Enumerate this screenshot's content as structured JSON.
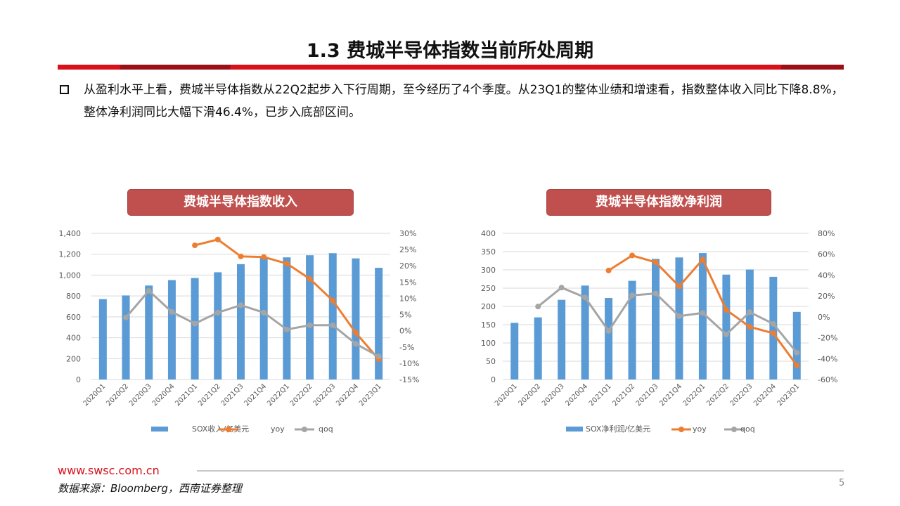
{
  "header": {
    "title": "1.3 费城半导体指数当前所处周期"
  },
  "body": {
    "paragraph": "从盈利水平上看，费城半导体指数从22Q2起步入下行周期，至今经历了4个季度。从23Q1的整体业绩和增速看，指数整体收入同比下降8.8%，整体净利润同比大幅下滑46.4%，已步入底部区间。"
  },
  "footer": {
    "website": "www.swsc.com.cn",
    "source": "数据来源：Bloomberg，西南证券整理",
    "page": "5"
  },
  "colors": {
    "bar": "#5b9bd5",
    "yoy": "#ed7d31",
    "qoq": "#a5a5a5",
    "pill": "#c0504d",
    "accent": "#d8111b"
  },
  "chart_data": [
    {
      "type": "bar+line",
      "title": "费城半导体指数收入",
      "categories": [
        "2020Q1",
        "2020Q2",
        "2020Q3",
        "2020Q4",
        "2021Q1",
        "2021Q2",
        "2021Q3",
        "2021Q4",
        "2022Q1",
        "2022Q2",
        "2022Q3",
        "2022Q4",
        "2023Q1"
      ],
      "y_left": {
        "range": [
          0,
          1400
        ],
        "ticks": [
          "0",
          "200",
          "400",
          "600",
          "800",
          "1,000",
          "1,200",
          "1,400"
        ],
        "tick_values": [
          0,
          200,
          400,
          600,
          800,
          1000,
          1200,
          1400
        ]
      },
      "y_right": {
        "range": [
          -15,
          30
        ],
        "ticks": [
          "-15%",
          "-10%",
          "-5%",
          "0%",
          "5%",
          "10%",
          "15%",
          "20%",
          "25%",
          "30%"
        ],
        "tick_values": [
          -15,
          -10,
          -5,
          0,
          5,
          10,
          15,
          20,
          25,
          30
        ]
      },
      "grid": true,
      "legend": "bottom",
      "series": [
        {
          "name": "SOX收入/亿美元",
          "kind": "bar",
          "axis": "left",
          "values": [
            770,
            805,
            900,
            952,
            972,
            1027,
            1105,
            1175,
            1170,
            1190,
            1210,
            1160,
            1070
          ]
        },
        {
          "name": "yoy",
          "kind": "line",
          "axis": "right",
          "values": [
            null,
            null,
            null,
            null,
            26.3,
            28.1,
            22.9,
            22.7,
            20.7,
            16.0,
            9.3,
            -0.6,
            -8.8
          ]
        },
        {
          "name": "qoq",
          "kind": "line",
          "axis": "right",
          "values": [
            null,
            4.1,
            12.3,
            5.8,
            2.2,
            5.6,
            7.9,
            5.6,
            0.4,
            1.7,
            1.7,
            -4.0,
            -7.9
          ]
        }
      ]
    },
    {
      "type": "bar+line",
      "title": "费城半导体指数净利润",
      "categories": [
        "2020Q1",
        "2020Q2",
        "2020Q3",
        "2020Q4",
        "2021Q1",
        "2021Q2",
        "2021Q3",
        "2021Q4",
        "2022Q1",
        "2022Q2",
        "2022Q3",
        "2022Q4",
        "2023Q1"
      ],
      "y_left": {
        "range": [
          0,
          400
        ],
        "ticks": [
          "0",
          "50",
          "100",
          "150",
          "200",
          "250",
          "300",
          "350",
          "400"
        ],
        "tick_values": [
          0,
          50,
          100,
          150,
          200,
          250,
          300,
          350,
          400
        ]
      },
      "y_right": {
        "range": [
          -60,
          80
        ],
        "ticks": [
          "-60%",
          "-40%",
          "-20%",
          "0%",
          "20%",
          "40%",
          "60%",
          "80%"
        ],
        "tick_values": [
          -60,
          -40,
          -20,
          0,
          20,
          40,
          60,
          80
        ]
      },
      "grid": true,
      "legend": "bottom",
      "series": [
        {
          "name": "SOX净利润/亿美元",
          "kind": "bar",
          "axis": "left",
          "values": [
            155,
            170,
            218,
            257,
            223,
            270,
            330,
            334,
            346,
            287,
            301,
            281,
            185
          ]
        },
        {
          "name": "yoy",
          "kind": "line",
          "axis": "right",
          "values": [
            null,
            null,
            null,
            null,
            44.4,
            58.8,
            52.3,
            29.2,
            55.0,
            6.7,
            -9.6,
            -15.7,
            -46.4
          ]
        },
        {
          "name": "qoq",
          "kind": "line",
          "axis": "right",
          "values": [
            null,
            9.9,
            28.0,
            18.6,
            -13.5,
            20.6,
            22.4,
            0.7,
            3.8,
            -16.8,
            4.5,
            -6.7,
            -34.3
          ]
        }
      ]
    }
  ]
}
